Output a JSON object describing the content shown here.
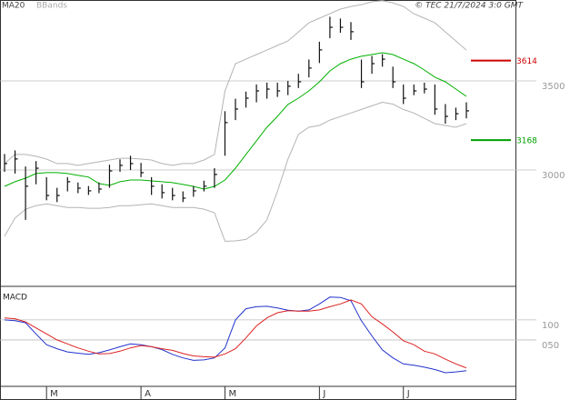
{
  "chart_data": [
    {
      "type": "hlc",
      "legend": [
        "MA20",
        "BBands"
      ],
      "source": "© TEC 21/7/2024 3:0 GMT",
      "categories": [
        null,
        null,
        null,
        null,
        "M",
        null,
        null,
        null,
        null,
        null,
        null,
        null,
        null,
        "A",
        null,
        null,
        null,
        null,
        null,
        null,
        null,
        "M",
        null,
        null,
        null,
        null,
        null,
        null,
        null,
        null,
        "J",
        null,
        null,
        null,
        null,
        null,
        null,
        null,
        "J",
        null,
        null,
        null,
        null,
        null,
        null
      ],
      "close": [
        3036,
        3062,
        2909,
        3010,
        2857,
        2857,
        2934,
        2898,
        2883,
        2893,
        2995,
        3026,
        3036,
        2985,
        2909,
        2873,
        2857,
        2842,
        2883,
        2909,
        2975,
        3266,
        3342,
        3403,
        3444,
        3454,
        3444,
        3470,
        3495,
        3572,
        3674,
        3801,
        3801,
        3776,
        3495,
        3597,
        3622,
        3495,
        3403,
        3444,
        3454,
        3342,
        3301,
        3316,
        3332
      ],
      "high": [
        3090,
        3110,
        3020,
        3050,
        2960,
        2900,
        2960,
        2930,
        2910,
        2930,
        3030,
        3060,
        3080,
        3040,
        2960,
        2920,
        2900,
        2880,
        2910,
        2940,
        3010,
        3330,
        3400,
        3440,
        3480,
        3490,
        3490,
        3500,
        3540,
        3620,
        3720,
        3860,
        3850,
        3830,
        3620,
        3640,
        3650,
        3580,
        3480,
        3480,
        3490,
        3480,
        3370,
        3350,
        3380
      ],
      "low": [
        2990,
        2980,
        2720,
        2920,
        2830,
        2820,
        2880,
        2870,
        2860,
        2870,
        2900,
        2990,
        3000,
        2960,
        2860,
        2840,
        2830,
        2820,
        2850,
        2880,
        2900,
        3080,
        3280,
        3350,
        3380,
        3400,
        3410,
        3420,
        3460,
        3520,
        3600,
        3740,
        3770,
        3730,
        3460,
        3540,
        3580,
        3460,
        3370,
        3420,
        3430,
        3310,
        3260,
        3280,
        3290
      ],
      "series": [
        {
          "name": "MA20",
          "color": "#00b000",
          "values": [
            2908,
            2934,
            2954,
            2980,
            2985,
            2985,
            2980,
            2970,
            2960,
            2924,
            2914,
            2934,
            2944,
            2944,
            2939,
            2934,
            2929,
            2919,
            2908,
            2893,
            2908,
            2944,
            3010,
            3087,
            3164,
            3240,
            3301,
            3368,
            3403,
            3444,
            3495,
            3556,
            3597,
            3622,
            3638,
            3648,
            3658,
            3648,
            3622,
            3597,
            3561,
            3521,
            3495,
            3454,
            3413
          ]
        },
        {
          "name": "BBands",
          "color": "#b4b4b4",
          "upper": [
            3036,
            3087,
            3087,
            3077,
            3061,
            3036,
            3036,
            3026,
            3036,
            3046,
            3056,
            3066,
            3066,
            3061,
            3056,
            3036,
            3026,
            3036,
            3036,
            3056,
            3087,
            3444,
            3597,
            3622,
            3648,
            3673,
            3699,
            3724,
            3775,
            3826,
            3852,
            3877,
            3903,
            3918,
            3928,
            3944,
            3950,
            3938,
            3918,
            3877,
            3852,
            3826,
            3775,
            3724,
            3673
          ],
          "lower": [
            2628,
            2730,
            2780,
            2800,
            2810,
            2800,
            2790,
            2790,
            2785,
            2785,
            2790,
            2800,
            2800,
            2805,
            2810,
            2800,
            2790,
            2790,
            2790,
            2780,
            2760,
            2600,
            2602,
            2610,
            2650,
            2720,
            2880,
            3060,
            3200,
            3240,
            3250,
            3280,
            3300,
            3320,
            3340,
            3360,
            3380,
            3370,
            3340,
            3320,
            3290,
            3260,
            3250,
            3240,
            3260
          ]
        }
      ],
      "markers": [
        {
          "value": 3614,
          "color": "#cc0000"
        },
        {
          "value": 3168,
          "color": "#00a000"
        }
      ],
      "ylim": [
        2347,
        3954
      ],
      "yticks": [
        3000,
        3500
      ],
      "grid": true
    },
    {
      "type": "line",
      "title": "MACD",
      "series": [
        {
          "color": "#2233cc",
          "values": [
            100,
            98,
            93,
            65,
            38,
            28,
            20,
            17,
            14,
            18,
            25,
            33,
            40,
            38,
            33,
            26,
            14,
            5,
            -1,
            0,
            5,
            30,
            100,
            128,
            133,
            134,
            130,
            124,
            122,
            125,
            140,
            157,
            156,
            148,
            98,
            60,
            25,
            5,
            -10,
            -13,
            -18,
            -24,
            -32,
            -30,
            -27
          ]
        },
        {
          "color": "#dd2222",
          "values": [
            105,
            103,
            95,
            80,
            65,
            50,
            40,
            30,
            22,
            15,
            16,
            22,
            30,
            36,
            33,
            28,
            24,
            16,
            10,
            8,
            7,
            15,
            28,
            55,
            85,
            105,
            118,
            123,
            122,
            122,
            125,
            133,
            140,
            150,
            140,
            108,
            90,
            70,
            48,
            38,
            22,
            15,
            2,
            -10,
            -20
          ]
        }
      ],
      "ylim": [
        -66,
        177
      ],
      "yticks": [
        {
          "value": 50,
          "label": "050"
        },
        100
      ],
      "grid": true
    }
  ]
}
